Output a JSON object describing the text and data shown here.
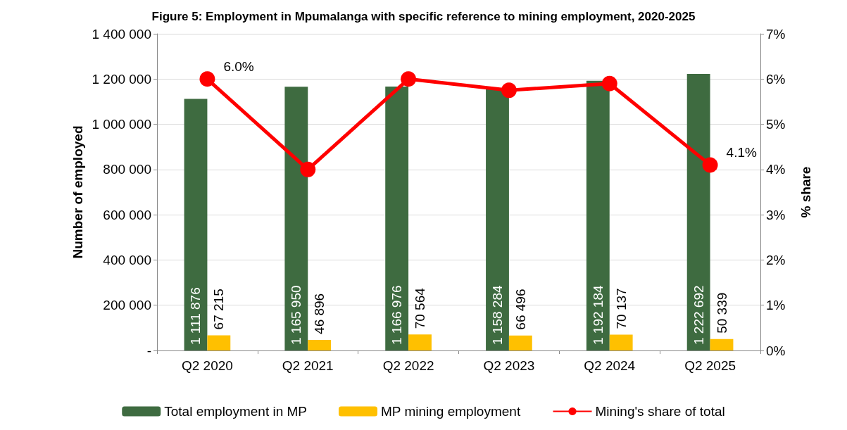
{
  "chart_data": {
    "type": "bar",
    "title": "Figure 5: Employment in Mpumalanga with specific reference to mining employment, 2020-2025",
    "categories": [
      "Q2 2020",
      "Q2 2021",
      "Q2 2022",
      "Q2 2023",
      "Q2 2024",
      "Q2 2025"
    ],
    "series": [
      {
        "name": "Total employment in MP",
        "color": "#3e6b40",
        "values": [
          1111876,
          1165950,
          1166976,
          1158284,
          1192184,
          1222692
        ],
        "value_labels": [
          "1 111 876",
          "1 165 950",
          "1 166 976",
          "1 158 284",
          "1 192 184",
          "1 222 692"
        ]
      },
      {
        "name": "MP mining employment",
        "color": "#ffc000",
        "values": [
          67215,
          46896,
          70564,
          66496,
          70137,
          50339
        ],
        "value_labels": [
          "67 215",
          "46 896",
          "70 564",
          "66 496",
          "70 137",
          "50 339"
        ]
      },
      {
        "name": "Mining's share of total",
        "type": "line",
        "axis": "y2",
        "color": "#ff0000",
        "marker": "circle",
        "values": [
          6.0,
          4.0,
          6.0,
          5.75,
          5.9,
          4.1
        ],
        "value_labels": [
          "6.0%",
          null,
          null,
          null,
          null,
          "4.1%"
        ]
      }
    ],
    "ylabel": "Number of employed",
    "y2label": "% share",
    "ylim": [
      0,
      1400000
    ],
    "yticks": [
      {
        "value": 0,
        "label": "-"
      },
      {
        "value": 200000,
        "label": "200 000"
      },
      {
        "value": 400000,
        "label": "400 000"
      },
      {
        "value": 600000,
        "label": "600 000"
      },
      {
        "value": 800000,
        "label": "800 000"
      },
      {
        "value": 1000000,
        "label": "1 000 000"
      },
      {
        "value": 1200000,
        "label": "1 200 000"
      },
      {
        "value": 1400000,
        "label": "1 400 000"
      }
    ],
    "y2lim": [
      0,
      7
    ],
    "y2ticks": [
      {
        "value": 0,
        "label": "0%"
      },
      {
        "value": 1,
        "label": "1%"
      },
      {
        "value": 2,
        "label": "2%"
      },
      {
        "value": 3,
        "label": "3%"
      },
      {
        "value": 4,
        "label": "4%"
      },
      {
        "value": 5,
        "label": "5%"
      },
      {
        "value": 6,
        "label": "6%"
      },
      {
        "value": 7,
        "label": "7%"
      }
    ],
    "grid": "y",
    "legend": "bottom"
  }
}
